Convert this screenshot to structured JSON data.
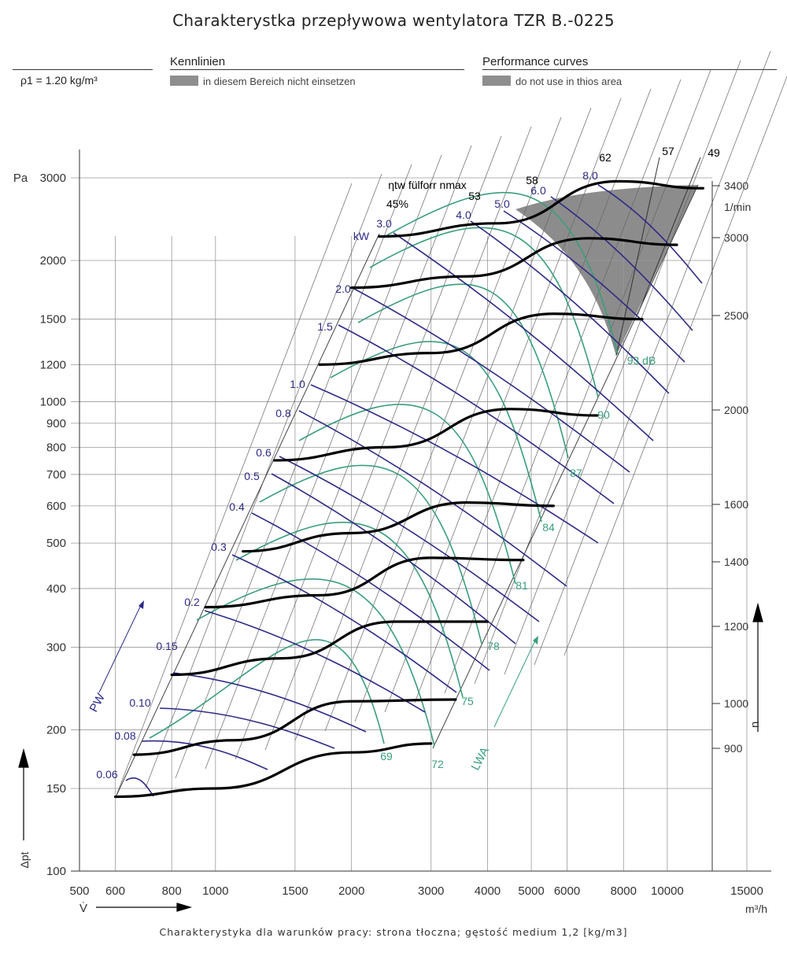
{
  "title": "Charakterystka przepływowa wentylatora TZR B.-0225",
  "header": {
    "density": "ρ1 = 1.20 kg/m³",
    "de_title": "Kennlinien",
    "de_note": "in diesem Bereich nicht einsetzen",
    "en_title": "Performance curves",
    "en_note": "do not use in thios area"
  },
  "footer": "Charakterystyka dla warunków pracy: strona tłoczna; gęstość medium 1,2 [kg/m3]",
  "colors": {
    "power": "#2e2a86",
    "sound": "#3a9e7e",
    "pressure": "#000000",
    "grid": "#9a9a9a",
    "forbidden": "#8c8c8c"
  },
  "chart_data": {
    "type": "line",
    "title": "Charakterystka przepływowa wentylatora TZR B.-0225",
    "x_axis": {
      "label": "V̇",
      "unit": "m³/h",
      "scale": "log",
      "ticks": [
        500,
        600,
        800,
        1000,
        1500,
        2000,
        3000,
        4000,
        5000,
        6000,
        8000,
        10000,
        15000
      ]
    },
    "y_axis": {
      "label": "Δpt",
      "unit": "Pa",
      "scale": "log",
      "ticks": [
        100,
        150,
        200,
        300,
        400,
        500,
        600,
        700,
        800,
        900,
        1000,
        1200,
        1500,
        2000,
        3000
      ]
    },
    "speed_axis": {
      "label": "n",
      "unit": "1/min",
      "ticks": [
        900,
        1000,
        1200,
        1400,
        1600,
        2000,
        2500,
        3000,
        3400
      ]
    },
    "efficiency_label": "ηtw fülforr nmax",
    "efficiency_values": [
      "45%",
      "53",
      "58",
      "62",
      "57",
      "49"
    ],
    "power_unit": "kW",
    "power_values": [
      "0.06",
      "0.08",
      "0.10",
      "0.15",
      "0.2",
      "0.3",
      "0.4",
      "0.5",
      "0.6",
      "0.8",
      "1.0",
      "1.5",
      "2.0",
      "3.0",
      "4.0",
      "5.0",
      "6.0",
      "8.0"
    ],
    "power_axis_label": "PW",
    "sound_axis_label": "LWA",
    "sound_values": [
      "69",
      "72",
      "75",
      "78",
      "81",
      "84",
      "87",
      "90",
      "93 dB"
    ],
    "pressure_curves": [
      {
        "rpm": 900,
        "points": [
          [
            600,
            144
          ],
          [
            1000,
            150
          ],
          [
            2000,
            179
          ],
          [
            3000,
            187
          ]
        ]
      },
      {
        "rpm": 1000,
        "points": [
          [
            660,
            177
          ],
          [
            1100,
            190
          ],
          [
            2000,
            230
          ],
          [
            3400,
            232
          ]
        ]
      },
      {
        "rpm": 1200,
        "points": [
          [
            800,
            262
          ],
          [
            1400,
            284
          ],
          [
            2500,
            340
          ],
          [
            4000,
            340
          ]
        ]
      },
      {
        "rpm": 1400,
        "points": [
          [
            950,
            365
          ],
          [
            1700,
            387
          ],
          [
            3000,
            465
          ],
          [
            4800,
            460
          ]
        ]
      },
      {
        "rpm": 1600,
        "points": [
          [
            1150,
            480
          ],
          [
            2000,
            525
          ],
          [
            3600,
            610
          ],
          [
            5600,
            600
          ]
        ]
      },
      {
        "rpm": 2000,
        "points": [
          [
            1350,
            750
          ],
          [
            2400,
            800
          ],
          [
            4500,
            965
          ],
          [
            7000,
            935
          ]
        ]
      },
      {
        "rpm": 2500,
        "points": [
          [
            1700,
            1200
          ],
          [
            3000,
            1270
          ],
          [
            5600,
            1540
          ],
          [
            8800,
            1500
          ]
        ]
      },
      {
        "rpm": 3000,
        "points": [
          [
            2000,
            1750
          ],
          [
            3600,
            1850
          ],
          [
            6700,
            2230
          ],
          [
            10500,
            2160
          ]
        ]
      },
      {
        "rpm": 3400,
        "points": [
          [
            2300,
            2250
          ],
          [
            4200,
            2400
          ],
          [
            7800,
            2950
          ],
          [
            12000,
            2850
          ]
        ]
      }
    ]
  }
}
